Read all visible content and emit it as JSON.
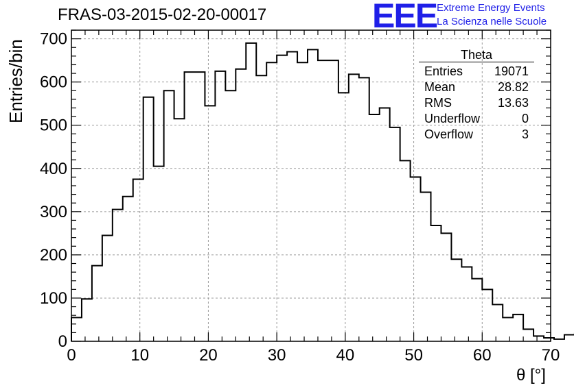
{
  "header": {
    "title": "FRAS-03-2015-02-20-00017",
    "logo": "EEE",
    "logo_line1": "Extreme Energy Events",
    "logo_line2": "La Scienza nelle Scuole"
  },
  "stats_box": {
    "title": "Theta",
    "rows": [
      {
        "label": "Entries",
        "value": "19071"
      },
      {
        "label": "Mean",
        "value": "28.82"
      },
      {
        "label": "RMS",
        "value": "13.63"
      },
      {
        "label": "Underflow",
        "value": "0"
      },
      {
        "label": "Overflow",
        "value": "3"
      }
    ]
  },
  "chart_data": {
    "type": "histogram",
    "title": "FRAS-03-2015-02-20-00017",
    "xlabel": "θ [°]",
    "ylabel": "Entries/bin",
    "xlim": [
      0,
      70
    ],
    "ylim": [
      0,
      720
    ],
    "bin_width": 1.5,
    "grid": true,
    "x_ticks": [
      0,
      10,
      20,
      30,
      40,
      50,
      60,
      70
    ],
    "y_ticks": [
      0,
      100,
      200,
      300,
      400,
      500,
      600,
      700
    ],
    "values": [
      55,
      98,
      175,
      245,
      305,
      335,
      375,
      565,
      405,
      580,
      515,
      623,
      623,
      545,
      625,
      580,
      630,
      690,
      615,
      645,
      662,
      670,
      645,
      675,
      650,
      650,
      575,
      618,
      610,
      525,
      540,
      495,
      418,
      380,
      345,
      268,
      250,
      190,
      172,
      145,
      120,
      85,
      55,
      62,
      28,
      12,
      8,
      5,
      15,
      18
    ],
    "line_color": "#000000",
    "grid_color": "#9a9a9a",
    "logo_color": "#1f1fe8"
  }
}
